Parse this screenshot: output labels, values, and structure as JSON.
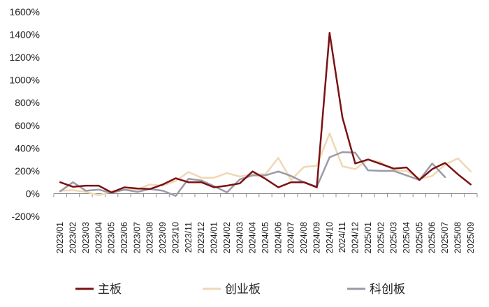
{
  "chart_data": {
    "type": "line",
    "categories": [
      "2023/01",
      "2023/02",
      "2023/03",
      "2023/04",
      "2023/05",
      "2023/06",
      "2023/07",
      "2023/08",
      "2023/09",
      "2023/10",
      "2023/11",
      "2023/12",
      "2024/01",
      "2024/02",
      "2024/03",
      "2024/04",
      "2024/05",
      "2024/06",
      "2024/07",
      "2024/08",
      "2024/09",
      "2024/10",
      "2024/11",
      "2024/12",
      "2025/01",
      "2025/02",
      "2025/03",
      "2025/04",
      "2025/05",
      "2025/06",
      "2025/07",
      "2025/08",
      "2025/09"
    ],
    "series": [
      {
        "name": "主板",
        "color": "#7b1113",
        "values": [
          100,
          60,
          70,
          70,
          10,
          55,
          45,
          40,
          80,
          135,
          100,
          100,
          55,
          70,
          90,
          195,
          130,
          55,
          100,
          100,
          55,
          1415,
          670,
          265,
          300,
          260,
          220,
          230,
          120,
          215,
          270,
          170,
          80
        ]
      },
      {
        "name": "创业板",
        "color": "#efd8b2",
        "values": [
          25,
          30,
          15,
          -15,
          20,
          30,
          35,
          80,
          70,
          110,
          190,
          140,
          140,
          180,
          150,
          170,
          170,
          315,
          120,
          235,
          245,
          530,
          240,
          215,
          300,
          275,
          205,
          200,
          130,
          155,
          255,
          310,
          195
        ]
      },
      {
        "name": "科创板",
        "color": "#9a9aa8",
        "values": [
          20,
          100,
          25,
          35,
          5,
          35,
          15,
          40,
          25,
          -20,
          130,
          115,
          65,
          10,
          125,
          160,
          160,
          195,
          155,
          100,
          60,
          320,
          365,
          360,
          205,
          200,
          200,
          160,
          120,
          265,
          145,
          null,
          null
        ]
      }
    ],
    "y_ticks": [
      "1600%",
      "1400%",
      "1200%",
      "1000%",
      "800%",
      "600%",
      "400%",
      "200%",
      "0%",
      "-200%"
    ],
    "ylim": [
      -200,
      1600
    ],
    "y_step": 200,
    "grid": false,
    "legend_position": "bottom"
  }
}
